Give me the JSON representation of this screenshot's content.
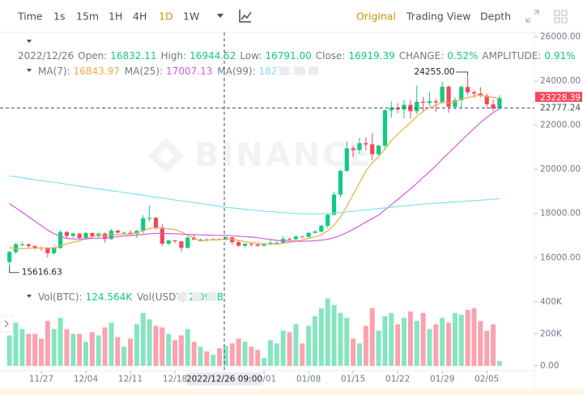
{
  "toolbar": {
    "intervals": [
      "Time",
      "1s",
      "15m",
      "1H",
      "4H",
      "1D",
      "1W"
    ],
    "active": "1D",
    "views": [
      "Original",
      "Trading View",
      "Depth"
    ],
    "active_view": "Original"
  },
  "header": {
    "date": "2022/12/26",
    "fields": [
      {
        "label": "Open:",
        "value": "16832.11"
      },
      {
        "label": "High:",
        "value": "16944.52"
      },
      {
        "label": "Low:",
        "value": "16791.00"
      },
      {
        "label": "Close:",
        "value": "16919.39"
      },
      {
        "label": "CHANGE:",
        "value": "0.52%"
      },
      {
        "label": "AMPLITUDE:",
        "value": "0.91%"
      }
    ]
  },
  "volume_header": [
    {
      "label": "Vol(BTC):",
      "value": "124.564K"
    },
    {
      "label": "Vol(USDT)",
      "value": "2.099B"
    }
  ],
  "watermark": "BINANCE",
  "crosshair": {
    "label": "2022/12/26 09:00"
  },
  "chart_data": [
    {
      "type": "candlestick",
      "up_color": "#0ecb81",
      "down_color": "#f6465d",
      "ylim": [
        14800,
        26200
      ],
      "yticks": [
        {
          "value": 16000,
          "label": "16000.00"
        },
        {
          "value": 18000,
          "label": "18000.00"
        },
        {
          "value": 20000,
          "label": "20000.00"
        },
        {
          "value": 22000,
          "label": "22000.00"
        },
        {
          "value": 24000,
          "label": "24000.00"
        },
        {
          "value": 26000,
          "label": "26000.00"
        }
      ],
      "open": [
        15800,
        16250,
        16600,
        16600,
        16520,
        16450,
        16440,
        16200,
        16440,
        17160,
        16980,
        17090,
        16890,
        17110,
        16970,
        17090,
        16840,
        17220,
        17130,
        17130,
        17080,
        17210,
        17780,
        17800,
        17360,
        16630,
        16780,
        16740,
        16440,
        16900,
        16820,
        16820,
        16780,
        16840,
        16830,
        16920,
        16700,
        16540,
        16630,
        16600,
        16540,
        16610,
        16670,
        16670,
        16850,
        16830,
        16950,
        16940,
        17120,
        17180,
        17440,
        17940,
        18850,
        19930,
        20950,
        20870,
        21180,
        21130,
        20680,
        21070,
        22670,
        22780,
        22710,
        22920,
        22630,
        23060,
        23010,
        23080,
        23030,
        23740,
        22830,
        23130,
        23730,
        23490,
        23430,
        23330,
        22940,
        22760
      ],
      "high": [
        16300,
        16680,
        16720,
        16650,
        16560,
        16500,
        16480,
        16500,
        17250,
        17200,
        17140,
        17110,
        17180,
        17140,
        17130,
        17140,
        17300,
        17270,
        17180,
        17250,
        17260,
        17920,
        18370,
        17850,
        17530,
        16800,
        16800,
        16750,
        16970,
        17050,
        16860,
        16870,
        16870,
        16870,
        16950,
        16940,
        16780,
        16650,
        16650,
        16620,
        16630,
        16780,
        16730,
        16980,
        16900,
        17020,
        16990,
        17180,
        17250,
        17490,
        18020,
        18980,
        19980,
        21250,
        21050,
        21430,
        21440,
        21640,
        21100,
        22720,
        23070,
        23000,
        23150,
        23150,
        23800,
        23280,
        23500,
        23200,
        23960,
        23800,
        23260,
        23800,
        24255,
        23580,
        23720,
        23430,
        23160,
        23360
      ],
      "low": [
        15616.63,
        16160,
        16520,
        16420,
        16360,
        16300,
        16010,
        16120,
        16400,
        16870,
        16900,
        16800,
        16860,
        16880,
        16910,
        16680,
        16810,
        17090,
        17080,
        17030,
        16890,
        17090,
        17650,
        17270,
        16530,
        16560,
        16660,
        16280,
        16400,
        16780,
        16760,
        16750,
        16770,
        16800,
        16790,
        16590,
        16480,
        16460,
        16500,
        16480,
        16500,
        16550,
        16620,
        16650,
        16760,
        16790,
        16910,
        16910,
        17100,
        17140,
        17320,
        17900,
        18720,
        19880,
        20550,
        20710,
        20860,
        20410,
        20630,
        20860,
        22330,
        22540,
        22310,
        22300,
        22500,
        22600,
        22880,
        22600,
        22950,
        22560,
        22710,
        22800,
        23370,
        23250,
        23260,
        22750,
        22630,
        22740
      ],
      "close": [
        16250,
        16600,
        16600,
        16520,
        16450,
        16440,
        16200,
        16440,
        17160,
        16980,
        17090,
        16890,
        17110,
        16970,
        17090,
        16840,
        17220,
        17130,
        17130,
        17080,
        17210,
        17780,
        17800,
        17360,
        16630,
        16780,
        16740,
        16440,
        16900,
        16820,
        16820,
        16780,
        16840,
        16830,
        16920,
        16700,
        16540,
        16630,
        16600,
        16540,
        16610,
        16670,
        16670,
        16850,
        16830,
        16950,
        16940,
        17120,
        17180,
        17440,
        17940,
        18850,
        19930,
        20950,
        20870,
        21180,
        21130,
        20680,
        21070,
        22670,
        22780,
        22710,
        22920,
        22630,
        23060,
        23010,
        23080,
        23030,
        23740,
        22830,
        23130,
        23730,
        23490,
        23430,
        23330,
        22940,
        22760,
        23230
      ],
      "lines": [
        {
          "name": "MA(7):",
          "legend_value": "16843.97",
          "color": "#f0a94a",
          "values": [
            16450,
            16420,
            16400,
            16420,
            16440,
            16430,
            16440,
            16430,
            16540,
            16620,
            16700,
            16760,
            16860,
            16940,
            17030,
            16990,
            17050,
            17040,
            17060,
            17070,
            17110,
            17220,
            17320,
            17350,
            17320,
            17310,
            17270,
            17160,
            17020,
            16880,
            16750,
            16790,
            16800,
            16800,
            16850,
            16820,
            16780,
            16720,
            16680,
            16650,
            16620,
            16620,
            16610,
            16650,
            16690,
            16740,
            16800,
            16870,
            16940,
            17040,
            17210,
            17470,
            17840,
            18320,
            18860,
            19380,
            19920,
            20290,
            20570,
            20920,
            21300,
            21600,
            21850,
            22110,
            22390,
            22620,
            22820,
            22890,
            23050,
            23010,
            23050,
            23180,
            23250,
            23310,
            23360,
            23290,
            23260,
            23210
          ]
        },
        {
          "name": "MA(25):",
          "legend_value": "17007.13",
          "color": "#d65be0",
          "values": [
            18450,
            18250,
            18050,
            17850,
            17650,
            17450,
            17250,
            17080,
            16960,
            16870,
            16850,
            16840,
            16850,
            16870,
            16880,
            16890,
            16920,
            16950,
            16980,
            17000,
            17020,
            17050,
            17080,
            17100,
            17100,
            17090,
            17080,
            17060,
            17050,
            17040,
            17030,
            17020,
            17010,
            17010,
            17010,
            16990,
            16970,
            16950,
            16930,
            16900,
            16860,
            16820,
            16780,
            16760,
            16750,
            16750,
            16740,
            16750,
            16760,
            16790,
            16830,
            16900,
            17000,
            17130,
            17280,
            17440,
            17610,
            17760,
            17930,
            18160,
            18400,
            18630,
            18870,
            19110,
            19360,
            19630,
            19890,
            20160,
            20460,
            20740,
            21010,
            21300,
            21580,
            21850,
            22110,
            22350,
            22560,
            22740
          ]
        },
        {
          "name": "MA(99):",
          "legend_value": "18275.76",
          "color": "#7fe3ea",
          "values": [
            19700,
            19660,
            19620,
            19570,
            19530,
            19490,
            19450,
            19410,
            19370,
            19320,
            19280,
            19240,
            19200,
            19160,
            19110,
            19070,
            19030,
            18990,
            18950,
            18910,
            18870,
            18830,
            18780,
            18740,
            18700,
            18660,
            18610,
            18570,
            18530,
            18490,
            18450,
            18410,
            18370,
            18320,
            18280,
            18250,
            18220,
            18190,
            18160,
            18130,
            18100,
            18080,
            18060,
            18040,
            18020,
            18000,
            17990,
            17980,
            17980,
            17980,
            17990,
            18010,
            18040,
            18070,
            18100,
            18130,
            18160,
            18190,
            18220,
            18250,
            18280,
            18310,
            18340,
            18370,
            18400,
            18420,
            18440,
            18460,
            18480,
            18500,
            18520,
            18540,
            18560,
            18580,
            18600,
            18620,
            18640,
            18670
          ]
        }
      ],
      "annotations": [
        {
          "label": "24255.00",
          "value": 24255
        },
        {
          "label": "15616.63",
          "value": 15616.63
        }
      ],
      "price_markers": [
        {
          "value": 23228.39,
          "label": "23228.39",
          "color": "#f6465d",
          "dashed": false
        },
        {
          "value": 22777.24,
          "label": "22777.24",
          "color": "#474d57",
          "dashed": true
        }
      ]
    },
    {
      "type": "bar",
      "ylim": [
        -15000,
        490000
      ],
      "yticks": [
        {
          "value": 0,
          "label": "0.00"
        },
        {
          "value": 200000,
          "label": "200K"
        },
        {
          "value": 400000,
          "label": "400K"
        }
      ],
      "categories": [
        null,
        null,
        null,
        null,
        null,
        "11/27",
        null,
        null,
        null,
        null,
        null,
        null,
        "12/04",
        null,
        null,
        null,
        null,
        null,
        null,
        "12/11",
        null,
        null,
        null,
        null,
        null,
        null,
        "12/18",
        null,
        null,
        null,
        null,
        null,
        null,
        null,
        null,
        null,
        null,
        null,
        null,
        null,
        "01/01",
        null,
        null,
        null,
        null,
        null,
        null,
        "01/08",
        null,
        null,
        null,
        null,
        null,
        null,
        "01/15",
        null,
        null,
        null,
        null,
        null,
        null,
        "01/22",
        null,
        null,
        null,
        null,
        null,
        null,
        "01/29",
        null,
        null,
        null,
        null,
        null,
        null,
        "02/05",
        null,
        null
      ],
      "values": [
        190000,
        270000,
        230000,
        200000,
        200000,
        170000,
        280000,
        230000,
        300000,
        230000,
        200000,
        200000,
        150000,
        210000,
        190000,
        240000,
        270000,
        180000,
        120000,
        170000,
        260000,
        330000,
        290000,
        250000,
        240000,
        200000,
        160000,
        190000,
        230000,
        150000,
        120000,
        90000,
        70000,
        110000,
        124564,
        140000,
        170000,
        150000,
        120000,
        100000,
        50000,
        160000,
        140000,
        220000,
        210000,
        260000,
        140000,
        250000,
        310000,
        360000,
        420000,
        380000,
        330000,
        300000,
        170000,
        140000,
        250000,
        360000,
        220000,
        310000,
        330000,
        260000,
        300000,
        340000,
        280000,
        330000,
        230000,
        260000,
        300000,
        270000,
        330000,
        320000,
        350000,
        360000,
        280000,
        220000,
        260000,
        30000
      ]
    }
  ]
}
